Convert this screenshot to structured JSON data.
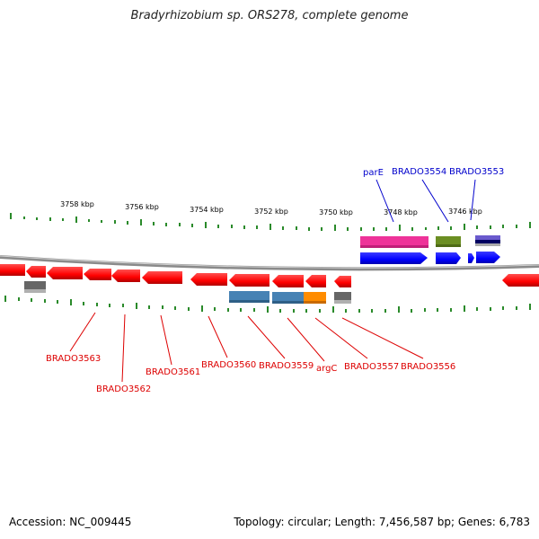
{
  "title": "Bradyrhizobium sp. ORS278, complete genome",
  "footer": {
    "accession": "Accession: NC_009445",
    "summary": "Topology: circular; Length: 7,456,587 bp; Genes: 6,783"
  },
  "scale_labels": [
    "3758 kbp",
    "3756 kbp",
    "3754 kbp",
    "3752 kbp",
    "3750 kbp",
    "3748 kbp",
    "3746 kbp"
  ],
  "top_labels": [
    "parE",
    "BRADO3554",
    "BRADO3553"
  ],
  "bottom_labels": [
    "BRADO3563",
    "BRADO3562",
    "BRADO3561",
    "BRADO3560",
    "BRADO3559",
    "argC",
    "BRADO3557",
    "BRADO3556"
  ],
  "colors": {
    "forward_gene": "#0000ff",
    "reverse_gene": "#ff0000",
    "top_label": "#0000cc",
    "bottom_label": "#dd0000",
    "tick": "#2a8a2a",
    "backbone": "#8a8a8a",
    "magenta_feature": "#ee3399",
    "olive_feature": "#6b8e23",
    "purple_feature": "#6a5acd",
    "steel_feature": "#4682b4",
    "orange_feature": "#ff8c00",
    "gray_feature": "#666666"
  }
}
